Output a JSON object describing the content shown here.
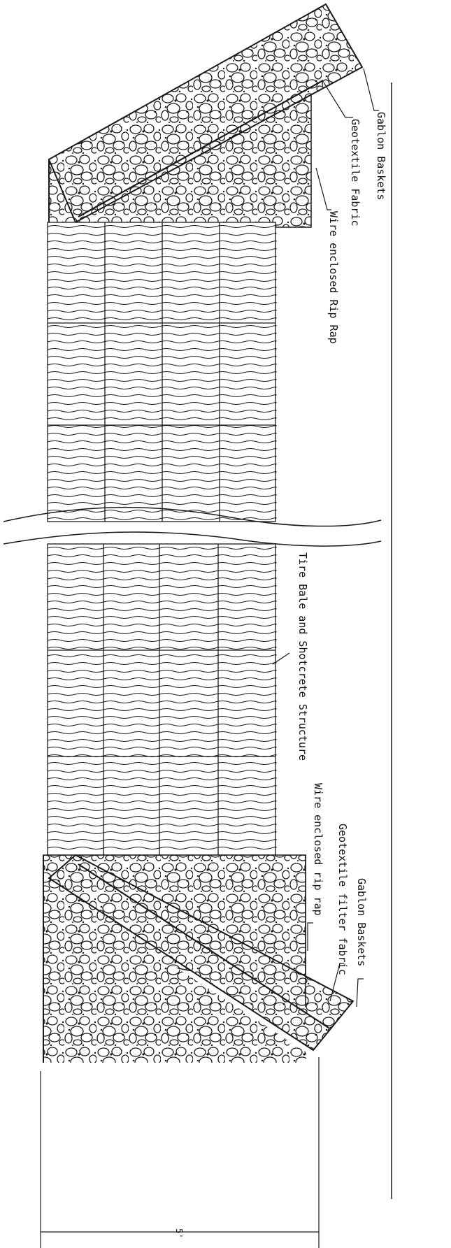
{
  "labels": {
    "gabion_top": "Gablon Baskets",
    "geotextile_top": "Geotextile Fabric",
    "riprap_top": "Wire enclosed Rip Rap",
    "tire_structure": "Tire Bale and Shotcrete Structure",
    "riprap_bottom": "Wire enclosed rip rap",
    "geotextile_bottom": "Geotextile filter fabric",
    "gabion_bottom": "Gablon Baskets",
    "dimension": "5'"
  },
  "colors": {
    "ink": "#1a1a1a",
    "paper": "#ffffff"
  }
}
